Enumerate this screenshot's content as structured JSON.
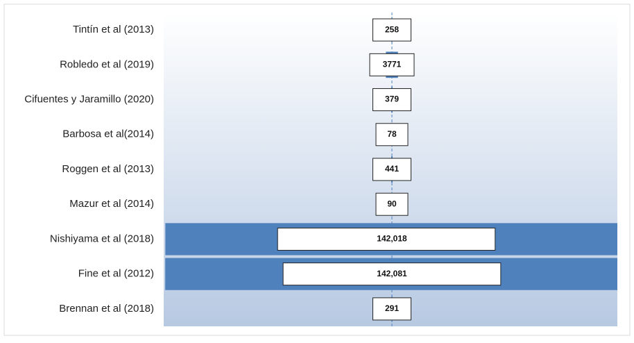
{
  "chart_data": {
    "type": "funnel",
    "categories": [
      "Tintín et al (2013)",
      "Robledo et al (2019)",
      "Cifuentes y Jaramillo (2020)",
      "Barbosa et al(2014)",
      "Roggen et al (2013)",
      "Mazur et al (2014)",
      "Nishiyama et al (2018)",
      "Fine et al (2012)",
      "Brennan et al (2018)"
    ],
    "values": [
      258,
      3771,
      379,
      78,
      441,
      90,
      142018,
      142081,
      291
    ],
    "value_labels": [
      "258",
      "3771",
      "379",
      "78",
      "441",
      "90",
      "142,018",
      "142,081",
      "291"
    ],
    "color": "#4f81bd"
  }
}
